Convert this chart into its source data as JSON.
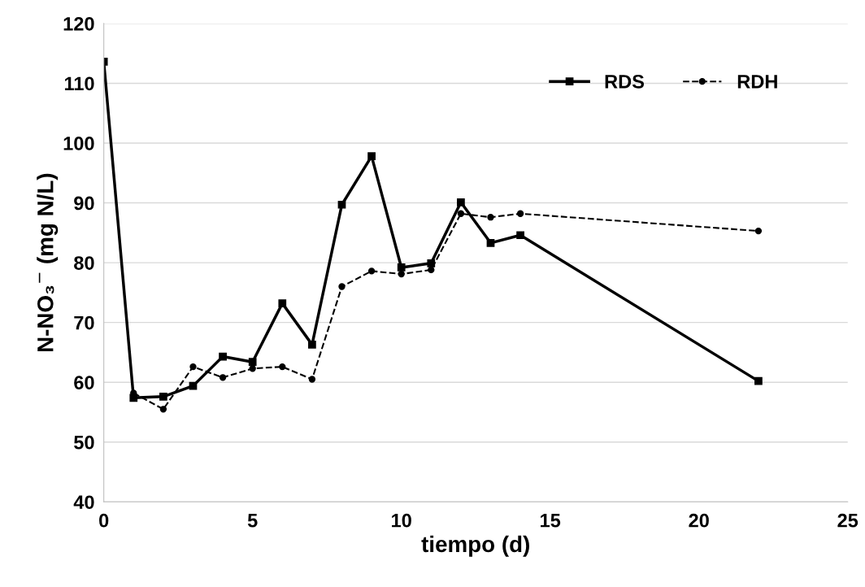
{
  "chart_data": {
    "type": "line",
    "xlabel": "tiempo (d)",
    "ylabel": "N-NO₃$^{−}$ (mg N/L)",
    "xlim": [
      0,
      25
    ],
    "xticks": [
      0,
      5,
      10,
      15,
      20,
      25
    ],
    "ylim": [
      40,
      120
    ],
    "yticks": [
      40,
      50,
      60,
      70,
      80,
      90,
      100,
      110,
      120
    ],
    "grid": "y",
    "legend": "top right",
    "series": [
      {
        "name": "RDS",
        "color": "#000000",
        "marker": "square",
        "line_style": "solid",
        "x": [
          0,
          1,
          2,
          3,
          4,
          5,
          6,
          7,
          8,
          9,
          10,
          11,
          12,
          13,
          14,
          22
        ],
        "values": [
          113.6,
          57.4,
          57.6,
          59.4,
          64.3,
          63.4,
          73.2,
          66.3,
          89.7,
          97.8,
          79.2,
          79.9,
          90.1,
          83.3,
          84.6,
          60.2
        ]
      },
      {
        "name": "RDH",
        "color": "#000000",
        "marker": "circle",
        "line_style": "dashed",
        "x": [
          1,
          2,
          3,
          4,
          5,
          6,
          7,
          8,
          9,
          10,
          11,
          12,
          13,
          14,
          22
        ],
        "values": [
          58.2,
          55.5,
          62.6,
          60.8,
          62.3,
          62.6,
          60.5,
          76.0,
          78.6,
          78.1,
          78.8,
          88.2,
          87.6,
          88.2,
          85.3
        ]
      }
    ]
  }
}
